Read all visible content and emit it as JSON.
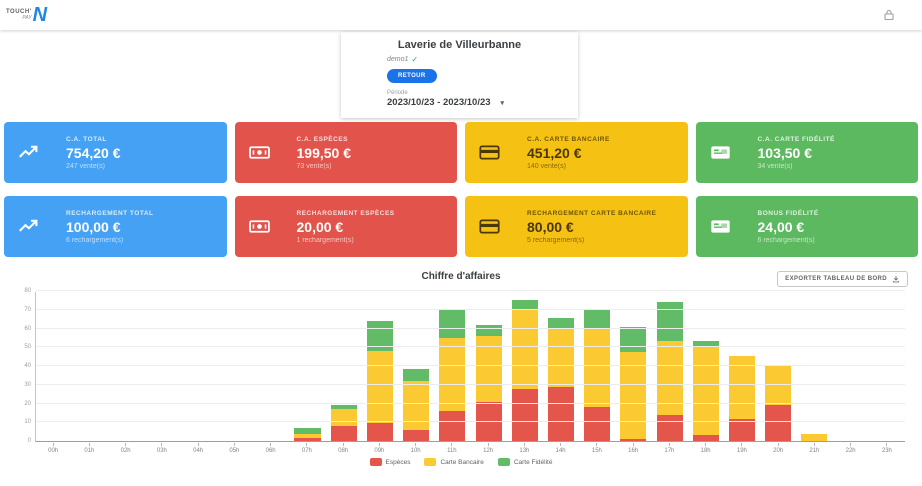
{
  "header": {
    "brand_top": "TOUCH'",
    "brand_bottom": "PAY",
    "brand_letter": "N"
  },
  "store_card": {
    "title": "Laverie de Villeurbanne",
    "subtitle": "demo1",
    "check": "✓",
    "button_label": "RETOUR",
    "period_label": "Période",
    "period_value": "2023/10/23 - 2023/10/23",
    "caret": "▾"
  },
  "kpi_cards": [
    {
      "label": "C.A. TOTAL",
      "value": "754,20 €",
      "sub": "247 vente(s)",
      "bg": "#45A1F3",
      "fg": "#ffffff",
      "icon": "trending-up"
    },
    {
      "label": "C.A. ESPÈCES",
      "value": "199,50 €",
      "sub": "73 vente(s)",
      "bg": "#E2544B",
      "fg": "#ffffff",
      "icon": "cash"
    },
    {
      "label": "C.A. CARTE BANCAIRE",
      "value": "451,20 €",
      "sub": "140 vente(s)",
      "bg": "#F5C214",
      "fg": "#4a3800",
      "icon": "credit-card"
    },
    {
      "label": "C.A. CARTE FIDÉLITÉ",
      "value": "103,50 €",
      "sub": "34 vente(s)",
      "bg": "#5CB960",
      "fg": "#ffffff",
      "icon": "loyalty-card"
    },
    {
      "label": "RECHARGEMENT TOTAL",
      "value": "100,00 €",
      "sub": "6 rechargement(s)",
      "bg": "#45A1F3",
      "fg": "#ffffff",
      "icon": "trending-up"
    },
    {
      "label": "RECHARGEMENT ESPÈCES",
      "value": "20,00 €",
      "sub": "1 rechargement(s)",
      "bg": "#E2544B",
      "fg": "#ffffff",
      "icon": "cash"
    },
    {
      "label": "RECHARGEMENT CARTE BANCAIRE",
      "value": "80,00 €",
      "sub": "5 rechargement(s)",
      "bg": "#F5C214",
      "fg": "#4a3800",
      "icon": "credit-card"
    },
    {
      "label": "BONUS FIDÉLITÉ",
      "value": "24,00 €",
      "sub": "6 rechargement(s)",
      "bg": "#5CB960",
      "fg": "#ffffff",
      "icon": "loyalty-card"
    }
  ],
  "chart": {
    "title": "Chiffre d'affaires",
    "export_button": "EXPORTER TABLEAU DE BORD"
  },
  "chart_data": {
    "type": "bar",
    "stacked": true,
    "title": "Chiffre d'affaires",
    "xlabel": "",
    "ylabel": "",
    "ylim": [
      0,
      80
    ],
    "ytick_step": 10,
    "grid": true,
    "legend_position": "bottom",
    "categories": [
      "00h",
      "01h",
      "02h",
      "03h",
      "04h",
      "05h",
      "06h",
      "07h",
      "08h",
      "09h",
      "10h",
      "11h",
      "12h",
      "13h",
      "14h",
      "15h",
      "16h",
      "17h",
      "18h",
      "19h",
      "20h",
      "21h",
      "22h",
      "23h"
    ],
    "series": [
      {
        "name": "Espèces",
        "color": "#E4564C",
        "values": [
          0,
          0,
          0,
          0,
          0,
          0,
          0,
          1.5,
          8,
          9.5,
          6,
          16,
          21,
          27.5,
          29,
          18,
          1,
          14,
          3,
          11.5,
          19,
          0,
          0,
          0
        ]
      },
      {
        "name": "Carte Bancaire",
        "color": "#FBCA33",
        "values": [
          0,
          0,
          0,
          0,
          0,
          0,
          0,
          2.5,
          9,
          38.5,
          26,
          39,
          35,
          43,
          31.5,
          42,
          46.5,
          39.5,
          47.5,
          34,
          21,
          4,
          0,
          0
        ]
      },
      {
        "name": "Carte Fidélité",
        "color": "#62BB66",
        "values": [
          0,
          0,
          0,
          0,
          0,
          0,
          0,
          3,
          2,
          16,
          6.5,
          15,
          6,
          4.5,
          5,
          10,
          13.5,
          20.5,
          3,
          0,
          0,
          0,
          0,
          0
        ]
      }
    ]
  }
}
